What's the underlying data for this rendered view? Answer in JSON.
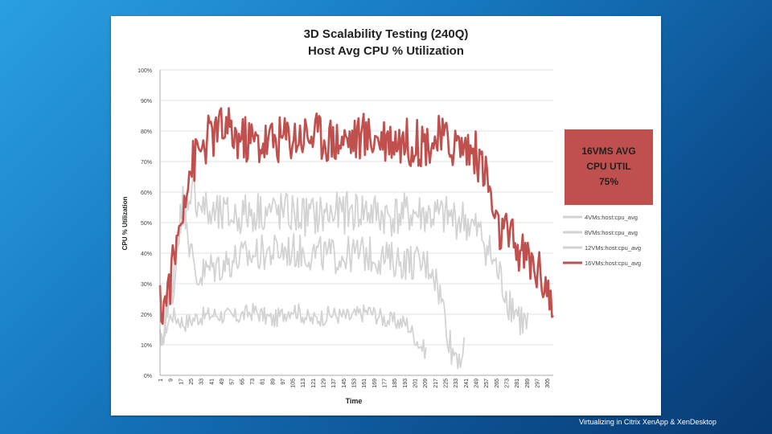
{
  "footer": {
    "text": "Virtualizing in Citrix XenApp & XenDesktop"
  },
  "colors": {
    "series_gray": "#d3d3d3",
    "series_red": "#c0504d",
    "callout_bg": "#c0504d",
    "grid": "#d9d9d9"
  },
  "chart_data": {
    "type": "line",
    "title": "3D Scalability Testing (240Q)",
    "subtitle": "Host Avg CPU % Utilization",
    "xlabel": "Time",
    "ylabel": "CPU % Utilization",
    "ylim": [
      0,
      100
    ],
    "xlim": [
      1,
      310
    ],
    "y_ticks": [
      "0%",
      "10%",
      "20%",
      "30%",
      "40%",
      "50%",
      "60%",
      "70%",
      "80%",
      "90%",
      "100%"
    ],
    "x_ticks": [
      1,
      9,
      17,
      25,
      33,
      41,
      49,
      57,
      65,
      73,
      81,
      89,
      97,
      105,
      113,
      121,
      129,
      137,
      145,
      153,
      161,
      169,
      177,
      185,
      193,
      201,
      209,
      217,
      225,
      233,
      241,
      249,
      257,
      265,
      273,
      281,
      289,
      297,
      305
    ],
    "grid": true,
    "legend_position": "right",
    "callout": {
      "lines": [
        "16VMS AVG",
        "CPU UTIL",
        "75%"
      ]
    },
    "series": [
      {
        "name": "4VMs:host:cpu_avg",
        "color": "#d3d3d3",
        "x": [
          1,
          5,
          10,
          20,
          30,
          45,
          60,
          75,
          90,
          105,
          120,
          135,
          150,
          165,
          180,
          195,
          205,
          210
        ],
        "y": [
          10,
          15,
          20,
          17,
          19,
          20,
          19,
          21,
          18,
          22,
          18,
          20,
          19,
          21,
          18,
          17,
          10,
          8
        ],
        "jitter": 3
      },
      {
        "name": "8VMs:host:cpu_avg",
        "color": "#d3d3d3",
        "x": [
          1,
          8,
          15,
          20,
          25,
          30,
          40,
          60,
          80,
          100,
          120,
          140,
          160,
          180,
          200,
          215,
          225,
          230,
          240
        ],
        "y": [
          10,
          22,
          46,
          60,
          40,
          32,
          35,
          38,
          40,
          41,
          40,
          39,
          40,
          38,
          37,
          36,
          20,
          8,
          7
        ],
        "jitter": 6
      },
      {
        "name": "12VMs:host:cpu_avg",
        "color": "#d3d3d3",
        "x": [
          1,
          10,
          20,
          25,
          30,
          40,
          60,
          80,
          100,
          120,
          140,
          160,
          180,
          200,
          220,
          240,
          255,
          265,
          275,
          285,
          290
        ],
        "y": [
          12,
          28,
          52,
          62,
          58,
          52,
          52,
          54,
          53,
          52,
          53,
          54,
          52,
          53,
          52,
          51,
          45,
          35,
          25,
          18,
          15
        ],
        "jitter": 7
      },
      {
        "name": "16VMs:host:cpu_avg",
        "color": "#c0504d",
        "x": [
          1,
          5,
          10,
          15,
          20,
          25,
          30,
          40,
          50,
          60,
          80,
          100,
          120,
          140,
          160,
          180,
          200,
          220,
          240,
          250,
          258,
          265,
          275,
          285,
          295,
          305,
          310
        ],
        "y": [
          22,
          24,
          33,
          45,
          60,
          68,
          72,
          78,
          81,
          78,
          76,
          78,
          79,
          77,
          78,
          78,
          76,
          77,
          75,
          72,
          65,
          48,
          45,
          40,
          36,
          30,
          20
        ],
        "jitter": 8
      }
    ]
  }
}
